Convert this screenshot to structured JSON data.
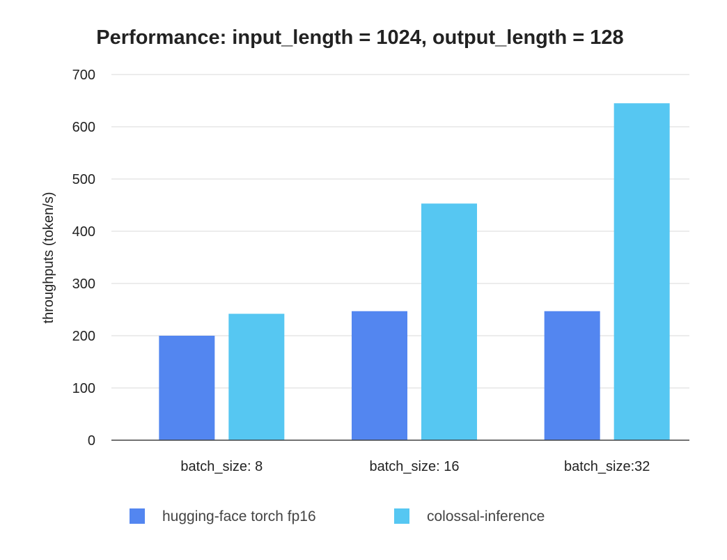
{
  "chart_data": {
    "type": "bar",
    "title": "Performance: input_length = 1024, output_length = 128",
    "xlabel": "",
    "ylabel": "throughputs (token/s)",
    "ylim": [
      0,
      700
    ],
    "yticks": [
      0,
      100,
      200,
      300,
      400,
      500,
      600,
      700
    ],
    "grid": true,
    "legend_position": "bottom",
    "categories": [
      "batch_size: 8",
      "batch_size: 16",
      "batch_size:32"
    ],
    "series": [
      {
        "name": "hugging-face torch fp16",
        "color": "#5386f0",
        "values": [
          200,
          247,
          247
        ]
      },
      {
        "name": "colossal-inference",
        "color": "#56c7f2",
        "values": [
          242,
          453,
          645
        ]
      }
    ]
  }
}
